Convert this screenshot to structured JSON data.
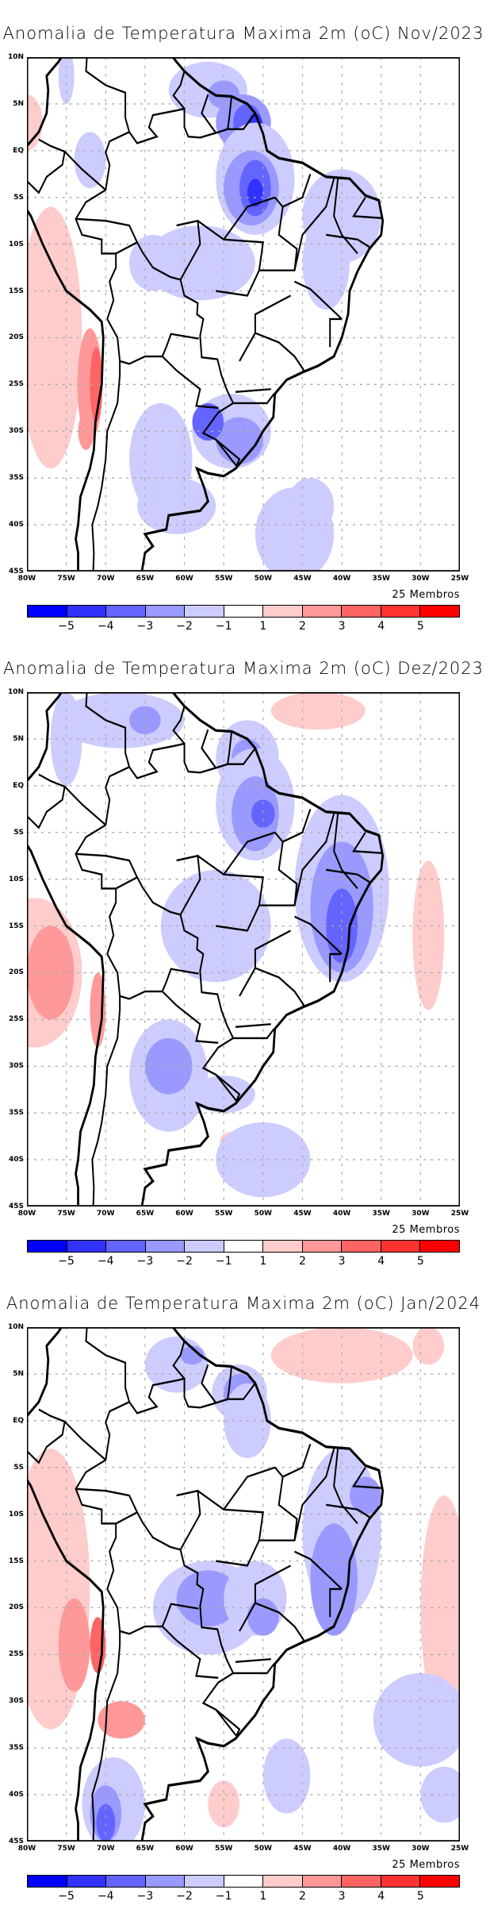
{
  "panels": [
    {
      "title": "Anomalia de Temperatura Maxima 2m (oC) Nov/2023",
      "members": "25 Membros"
    },
    {
      "title": "Anomalia de Temperatura Maxima 2m (oC) Dez/2023",
      "members": "25 Membros"
    },
    {
      "title": "Anomalia de Temperatura Maxima 2m (oC) Jan/2024",
      "members": "25 Membros"
    }
  ],
  "axes": {
    "lat_labels": [
      "10N",
      "5N",
      "EQ",
      "5S",
      "10S",
      "15S",
      "20S",
      "25S",
      "30S",
      "35S",
      "40S",
      "45S"
    ],
    "lon_labels": [
      "80W",
      "75W",
      "70W",
      "65W",
      "60W",
      "55W",
      "50W",
      "45W",
      "40W",
      "35W",
      "30W",
      "25W"
    ]
  },
  "colorbar": {
    "labels": [
      "−5",
      "−4",
      "−3",
      "−2",
      "−1",
      "1",
      "2",
      "3",
      "4",
      "5"
    ],
    "colors": [
      "#0000ff",
      "#3232ff",
      "#6464ff",
      "#9999ff",
      "#ccccff",
      "#ffffff",
      "#ffcccc",
      "#ff9999",
      "#ff6464",
      "#ff3232",
      "#ff0000"
    ]
  }
}
